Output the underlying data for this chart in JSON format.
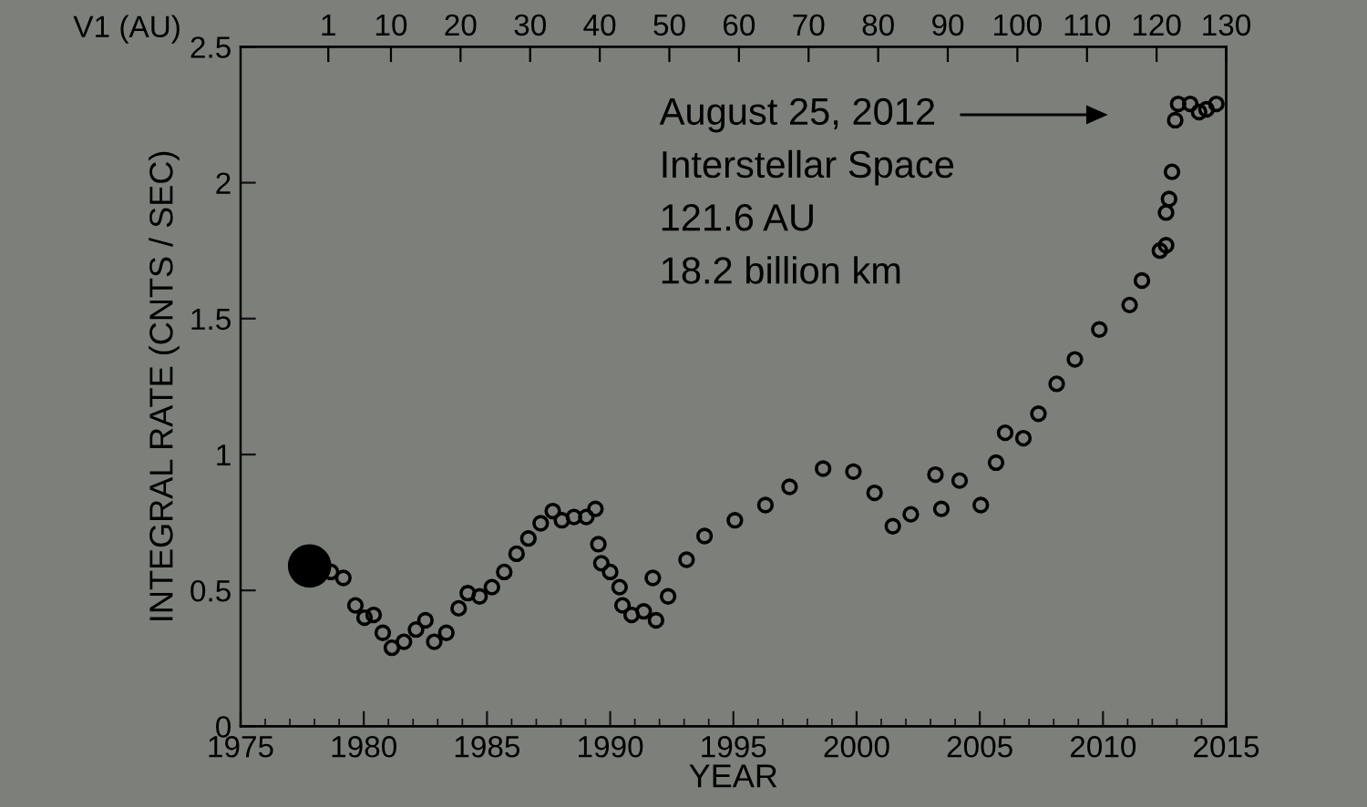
{
  "chart_data": {
    "type": "scatter",
    "xlabel": "YEAR",
    "ylabel": "INTEGRAL RATE (CNTS / SEC)",
    "x2label": "V1 (AU)",
    "xlim": [
      1975,
      2015
    ],
    "xticks": [
      1975,
      1980,
      1985,
      1990,
      1995,
      2000,
      2005,
      2010,
      2015
    ],
    "ylim": [
      0,
      2.5
    ],
    "yticks": [
      0,
      0.5,
      1,
      1.5,
      2,
      2.5
    ],
    "x2lim": [
      -11.6,
      130
    ],
    "x2ticks": [
      1,
      10,
      20,
      30,
      40,
      50,
      60,
      70,
      80,
      90,
      100,
      110,
      120,
      130
    ],
    "grid": false,
    "legend": false,
    "marker": "circle",
    "series": [
      {
        "type": "bubble",
        "color": "#000000",
        "x": [
          1977.8
        ],
        "values": [
          0.59
        ],
        "sizes": [
          1
        ]
      },
      {
        "color": "#000000",
        "x": [
          1978.67,
          1979.17,
          1979.66,
          1980.03,
          1980.4,
          1980.77,
          1981.14,
          1981.63,
          1982.12,
          1982.5,
          1982.86,
          1983.35,
          1983.85,
          1984.22,
          1984.7,
          1985.2,
          1985.7,
          1986.2,
          1986.68,
          1987.18,
          1987.67,
          1988.04,
          1988.53,
          1989.03,
          1989.4,
          1989.52,
          1989.64,
          1990.0,
          1990.38,
          1990.5,
          1990.87,
          1991.36,
          1991.73,
          1991.86,
          1992.35,
          1993.1,
          1993.83,
          1995.06,
          1996.3,
          1997.28,
          1998.64,
          1999.87,
          2000.73,
          2001.47,
          2002.2,
          2003.2,
          2003.44,
          2004.18,
          2005.04,
          2005.66,
          2006.03,
          2006.77,
          2007.38,
          2008.12,
          2008.86,
          2009.85,
          2011.08,
          2011.58,
          2012.31,
          2012.56,
          2012.56,
          2012.68,
          2012.8,
          2012.93,
          2013.05,
          2013.54,
          2013.9,
          2014.2,
          2014.6
        ],
        "values": [
          0.568,
          0.546,
          0.445,
          0.4,
          0.41,
          0.344,
          0.289,
          0.311,
          0.356,
          0.39,
          0.311,
          0.344,
          0.434,
          0.49,
          0.478,
          0.512,
          0.568,
          0.635,
          0.691,
          0.747,
          0.792,
          0.758,
          0.77,
          0.77,
          0.8,
          0.67,
          0.6,
          0.568,
          0.512,
          0.445,
          0.41,
          0.423,
          0.546,
          0.39,
          0.478,
          0.613,
          0.7,
          0.758,
          0.814,
          0.881,
          0.948,
          0.937,
          0.859,
          0.736,
          0.78,
          0.926,
          0.8,
          0.904,
          0.814,
          0.97,
          1.08,
          1.06,
          1.15,
          1.26,
          1.35,
          1.46,
          1.55,
          1.64,
          1.75,
          1.77,
          1.89,
          1.94,
          2.04,
          2.23,
          2.29,
          2.29,
          2.26,
          2.27,
          2.29
        ]
      }
    ],
    "annotations": [
      "August 25, 2012",
      "Interstellar Space",
      "121.6 AU",
      "18.2 billion km"
    ]
  }
}
